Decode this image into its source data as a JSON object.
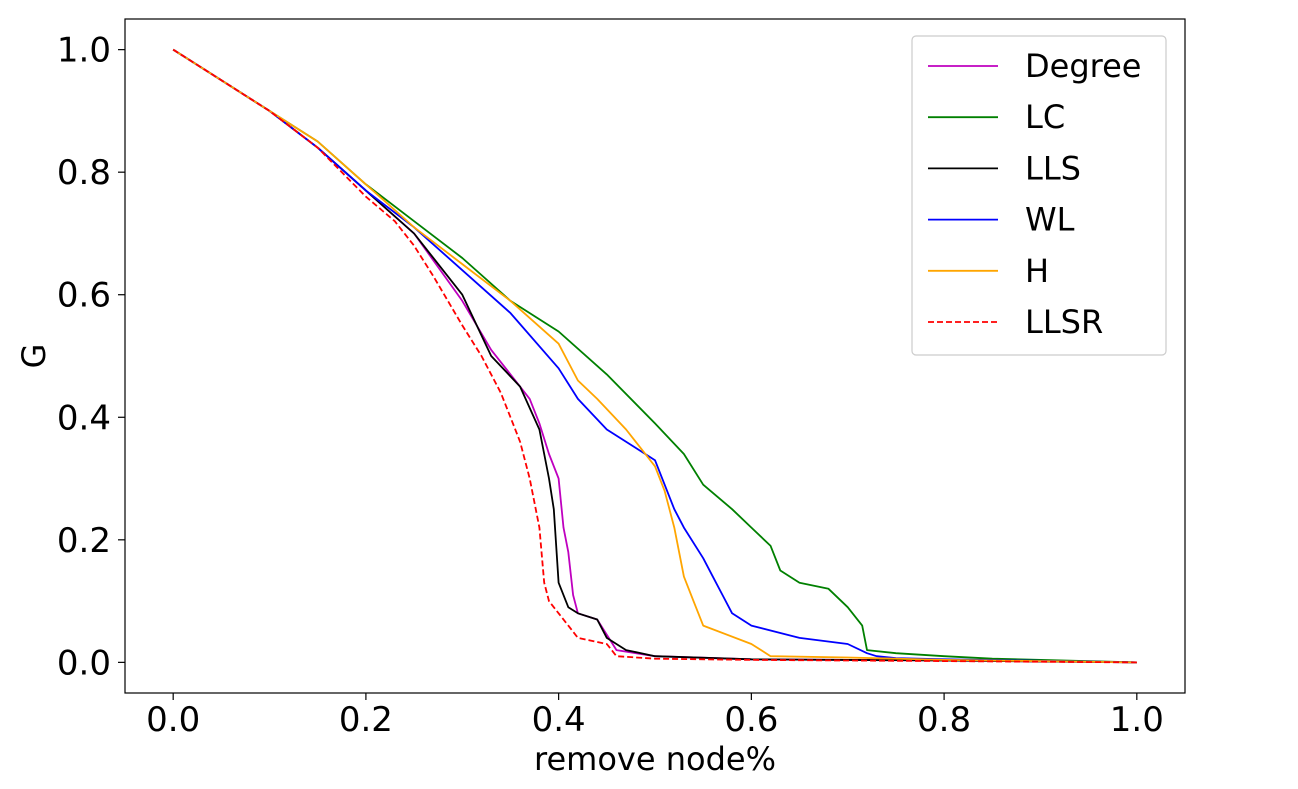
{
  "chart_data": {
    "type": "line",
    "xlabel": "remove node%",
    "ylabel": "G",
    "xlim": [
      -0.05,
      1.05
    ],
    "ylim": [
      -0.05,
      1.05
    ],
    "xticks": [
      0.0,
      0.2,
      0.4,
      0.6,
      0.8,
      1.0
    ],
    "yticks": [
      0.0,
      0.2,
      0.4,
      0.6,
      0.8,
      1.0
    ],
    "xtick_labels": [
      "0.0",
      "0.2",
      "0.4",
      "0.6",
      "0.8",
      "1.0"
    ],
    "ytick_labels": [
      "0.0",
      "0.2",
      "0.4",
      "0.6",
      "0.8",
      "1.0"
    ],
    "legend_position": "top-right",
    "grid": false,
    "series": [
      {
        "name": "Degree",
        "color": "#bf00bf",
        "dash": "solid",
        "x": [
          0,
          0.05,
          0.1,
          0.15,
          0.2,
          0.25,
          0.3,
          0.33,
          0.35,
          0.37,
          0.38,
          0.39,
          0.4,
          0.405,
          0.41,
          0.415,
          0.42,
          0.44,
          0.46,
          0.5,
          0.6,
          0.8,
          1.0
        ],
        "y": [
          1.0,
          0.95,
          0.9,
          0.84,
          0.77,
          0.7,
          0.59,
          0.51,
          0.47,
          0.43,
          0.39,
          0.34,
          0.3,
          0.22,
          0.18,
          0.11,
          0.08,
          0.07,
          0.02,
          0.01,
          0.005,
          0.003,
          0.0
        ]
      },
      {
        "name": "LC",
        "color": "#008000",
        "dash": "solid",
        "x": [
          0,
          0.05,
          0.1,
          0.15,
          0.2,
          0.25,
          0.3,
          0.35,
          0.4,
          0.45,
          0.5,
          0.53,
          0.55,
          0.58,
          0.6,
          0.62,
          0.63,
          0.65,
          0.68,
          0.7,
          0.715,
          0.72,
          0.75,
          0.8,
          0.85,
          0.9,
          1.0
        ],
        "y": [
          1.0,
          0.95,
          0.9,
          0.85,
          0.78,
          0.72,
          0.66,
          0.59,
          0.54,
          0.47,
          0.39,
          0.34,
          0.29,
          0.25,
          0.22,
          0.19,
          0.15,
          0.13,
          0.12,
          0.09,
          0.06,
          0.02,
          0.015,
          0.01,
          0.006,
          0.004,
          0.0
        ]
      },
      {
        "name": "LLS",
        "color": "#000000",
        "dash": "solid",
        "x": [
          0,
          0.05,
          0.1,
          0.15,
          0.2,
          0.25,
          0.3,
          0.33,
          0.36,
          0.38,
          0.39,
          0.395,
          0.4,
          0.41,
          0.42,
          0.44,
          0.45,
          0.47,
          0.5,
          0.6,
          0.8,
          1.0
        ],
        "y": [
          1.0,
          0.95,
          0.9,
          0.84,
          0.77,
          0.7,
          0.6,
          0.5,
          0.45,
          0.38,
          0.3,
          0.25,
          0.13,
          0.09,
          0.08,
          0.07,
          0.04,
          0.02,
          0.01,
          0.005,
          0.003,
          0.0
        ]
      },
      {
        "name": "WL",
        "color": "#0000ff",
        "dash": "solid",
        "x": [
          0,
          0.05,
          0.1,
          0.15,
          0.2,
          0.25,
          0.3,
          0.35,
          0.4,
          0.42,
          0.45,
          0.48,
          0.5,
          0.52,
          0.53,
          0.55,
          0.56,
          0.57,
          0.58,
          0.6,
          0.65,
          0.7,
          0.72,
          0.73,
          0.75,
          0.8,
          1.0
        ],
        "y": [
          1.0,
          0.95,
          0.9,
          0.84,
          0.77,
          0.71,
          0.64,
          0.57,
          0.48,
          0.43,
          0.38,
          0.35,
          0.33,
          0.25,
          0.22,
          0.17,
          0.14,
          0.11,
          0.08,
          0.06,
          0.04,
          0.03,
          0.015,
          0.01,
          0.007,
          0.005,
          0.0
        ]
      },
      {
        "name": "H",
        "color": "#ffa500",
        "dash": "solid",
        "x": [
          0,
          0.05,
          0.1,
          0.15,
          0.2,
          0.25,
          0.3,
          0.35,
          0.4,
          0.42,
          0.44,
          0.47,
          0.5,
          0.51,
          0.52,
          0.53,
          0.54,
          0.55,
          0.6,
          0.62,
          0.7,
          0.8,
          1.0
        ],
        "y": [
          1.0,
          0.95,
          0.9,
          0.85,
          0.78,
          0.71,
          0.65,
          0.59,
          0.52,
          0.46,
          0.43,
          0.38,
          0.32,
          0.28,
          0.22,
          0.14,
          0.1,
          0.06,
          0.03,
          0.01,
          0.008,
          0.004,
          0.0
        ]
      },
      {
        "name": "LLSR",
        "color": "#ff0000",
        "dash": "dashed",
        "x": [
          0,
          0.05,
          0.1,
          0.15,
          0.2,
          0.23,
          0.25,
          0.27,
          0.3,
          0.32,
          0.34,
          0.35,
          0.36,
          0.37,
          0.38,
          0.385,
          0.39,
          0.4,
          0.41,
          0.42,
          0.45,
          0.46,
          0.5,
          0.6,
          0.8,
          1.0
        ],
        "y": [
          1.0,
          0.95,
          0.9,
          0.84,
          0.76,
          0.72,
          0.68,
          0.63,
          0.55,
          0.5,
          0.44,
          0.4,
          0.36,
          0.3,
          0.22,
          0.13,
          0.1,
          0.08,
          0.06,
          0.04,
          0.03,
          0.01,
          0.006,
          0.004,
          0.002,
          0.0
        ]
      }
    ]
  }
}
